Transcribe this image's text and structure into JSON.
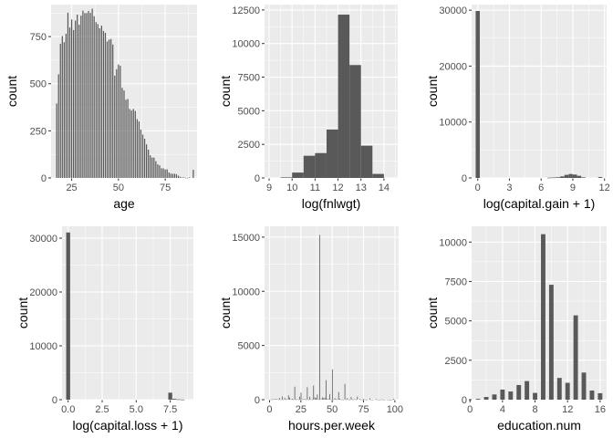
{
  "colors": {
    "panel_background": "#EBEBEB",
    "grid": "#FFFFFF",
    "bar": "#595959",
    "axis_text": "#4D4D4D"
  },
  "chart_data": [
    {
      "type": "bar",
      "xlabel": "age",
      "ylabel": "count",
      "xlim": [
        14,
        92
      ],
      "ylim": [
        0,
        920
      ],
      "xticks": [
        25,
        50,
        75
      ],
      "yticks": [
        0,
        250,
        500,
        750
      ],
      "bar_width": 0.6,
      "x": [
        17,
        18,
        19,
        20,
        21,
        22,
        23,
        24,
        25,
        26,
        27,
        28,
        29,
        30,
        31,
        32,
        33,
        34,
        35,
        36,
        37,
        38,
        39,
        40,
        41,
        42,
        43,
        44,
        45,
        46,
        47,
        48,
        49,
        50,
        51,
        52,
        53,
        54,
        55,
        56,
        57,
        58,
        59,
        60,
        61,
        62,
        63,
        64,
        65,
        66,
        67,
        68,
        69,
        70,
        71,
        72,
        73,
        74,
        75,
        76,
        77,
        78,
        79,
        80,
        81,
        82,
        83,
        84,
        85,
        86,
        87,
        88,
        90
      ],
      "values": [
        395,
        550,
        712,
        753,
        720,
        765,
        877,
        798,
        841,
        785,
        835,
        867,
        813,
        861,
        888,
        875,
        875,
        886,
        876,
        898,
        858,
        827,
        816,
        794,
        808,
        780,
        770,
        724,
        734,
        737,
        708,
        543,
        577,
        602,
        595,
        478,
        464,
        415,
        419,
        366,
        358,
        366,
        355,
        312,
        300,
        257,
        230,
        208,
        178,
        150,
        120,
        108,
        108,
        89,
        72,
        67,
        51,
        51,
        45,
        46,
        29,
        23,
        22,
        22,
        20,
        12,
        6,
        3,
        3,
        1,
        1,
        3,
        43
      ]
    },
    {
      "type": "bar",
      "xlabel": "log(fnlwgt)",
      "ylabel": "count",
      "xlim": [
        8.8,
        14.6
      ],
      "ylim": [
        0,
        12900
      ],
      "xticks": [
        9,
        10,
        11,
        12,
        13,
        14
      ],
      "yticks": [
        0,
        2500,
        5000,
        7500,
        10000,
        12500
      ],
      "bar_width": 0.5,
      "x": [
        9.75,
        10.25,
        10.75,
        11.25,
        11.75,
        12.25,
        12.75,
        13.25,
        13.75
      ],
      "values": [
        40,
        400,
        1650,
        1850,
        3600,
        12150,
        8400,
        2400,
        300
      ]
    },
    {
      "type": "bar",
      "xlabel": "log(capital.gain + 1)",
      "ylabel": "count",
      "xlim": [
        -0.58,
        12.2
      ],
      "ylim": [
        0,
        31000
      ],
      "xticks": [
        0,
        3,
        6,
        9,
        12
      ],
      "yticks": [
        0,
        10000,
        20000,
        30000
      ],
      "bar_width": 0.39,
      "x": [
        0,
        6.8,
        7.2,
        7.6,
        8.0,
        8.4,
        8.8,
        9.2,
        9.6,
        10.0,
        11.6
      ],
      "values": [
        29850,
        50,
        80,
        120,
        280,
        550,
        700,
        600,
        380,
        100,
        160
      ]
    },
    {
      "type": "bar",
      "xlabel": "log(capital.loss + 1)",
      "ylabel": "count",
      "xlim": [
        -0.45,
        9.2
      ],
      "ylim": [
        0,
        32200
      ],
      "xticks": [
        0,
        2.5,
        5.0,
        7.5
      ],
      "yticks": [
        0,
        10000,
        20000,
        30000
      ],
      "tick_labels": [
        "0.0",
        "2.5",
        "5.0",
        "7.5"
      ],
      "bar_width": 0.29,
      "x": [
        0,
        7.5,
        7.8,
        8.1,
        8.4
      ],
      "values": [
        31050,
        1300,
        150,
        60,
        30
      ]
    },
    {
      "type": "bar",
      "xlabel": "hours.per.week",
      "ylabel": "count",
      "xlim": [
        -4,
        103
      ],
      "ylim": [
        0,
        16000
      ],
      "xticks": [
        0,
        25,
        50,
        75,
        100
      ],
      "yticks": [
        0,
        5000,
        10000,
        15000
      ],
      "bar_width": 0.35,
      "x": [
        1,
        2,
        3,
        4,
        5,
        6,
        7,
        8,
        9,
        10,
        11,
        12,
        13,
        14,
        15,
        16,
        17,
        18,
        19,
        20,
        21,
        22,
        23,
        24,
        25,
        26,
        27,
        28,
        29,
        30,
        31,
        32,
        33,
        34,
        35,
        36,
        37,
        38,
        39,
        40,
        41,
        42,
        43,
        44,
        45,
        46,
        47,
        48,
        49,
        50,
        51,
        52,
        53,
        54,
        55,
        56,
        57,
        58,
        59,
        60,
        61,
        62,
        63,
        64,
        65,
        66,
        67,
        68,
        69,
        70,
        72,
        73,
        74,
        75,
        76,
        77,
        78,
        80,
        81,
        82,
        84,
        85,
        86,
        87,
        88,
        89,
        90,
        91,
        92,
        94,
        95,
        96,
        97,
        98,
        99
      ],
      "values": [
        20,
        30,
        40,
        60,
        60,
        50,
        30,
        150,
        20,
        300,
        10,
        180,
        30,
        40,
        400,
        200,
        30,
        80,
        20,
        1200,
        25,
        50,
        20,
        280,
        650,
        30,
        30,
        80,
        10,
        1150,
        10,
        270,
        40,
        30,
        1300,
        220,
        150,
        480,
        40,
        15200,
        40,
        220,
        150,
        200,
        1800,
        80,
        50,
        520,
        30,
        2800,
        10,
        140,
        30,
        50,
        700,
        90,
        10,
        30,
        10,
        1450,
        20,
        150,
        10,
        20,
        250,
        20,
        20,
        60,
        10,
        290,
        70,
        10,
        10,
        70,
        20,
        10,
        10,
        130,
        5,
        5,
        20,
        50,
        10,
        10,
        20,
        10,
        30,
        5,
        5,
        10,
        5,
        10,
        5,
        10,
        85
      ]
    },
    {
      "type": "bar",
      "xlabel": "education.num",
      "ylabel": "count",
      "xlim": [
        0.2,
        16.8
      ],
      "ylim": [
        0,
        11000
      ],
      "xticks": [
        0,
        4,
        8,
        12,
        16
      ],
      "yticks": [
        0,
        2500,
        5000,
        7500,
        10000
      ],
      "bar_width": 0.55,
      "x": [
        1,
        2,
        3,
        4,
        5,
        6,
        7,
        8,
        9,
        10,
        11,
        12,
        13,
        14,
        15,
        16
      ],
      "values": [
        50,
        170,
        330,
        640,
        520,
        930,
        1180,
        430,
        10500,
        7290,
        1380,
        1070,
        5350,
        1720,
        580,
        410
      ]
    }
  ]
}
